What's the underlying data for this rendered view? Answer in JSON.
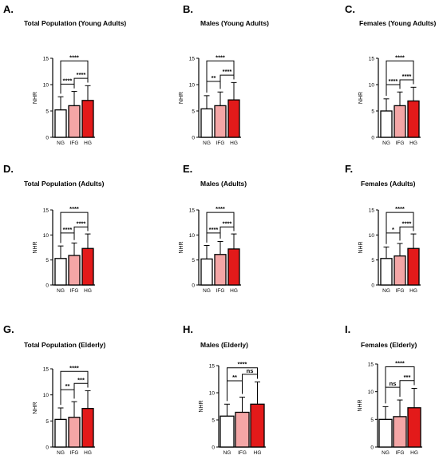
{
  "figure": {
    "panels": [
      {
        "label": "A.",
        "title": "Total Population (Young Adults)"
      },
      {
        "label": "B.",
        "title": "Males (Young Adults)"
      },
      {
        "label": "C.",
        "title": "Females (Young Adults)"
      },
      {
        "label": "D.",
        "title": "Total Population (Adults)"
      },
      {
        "label": "E.",
        "title": "Males (Adults)"
      },
      {
        "label": "F.",
        "title": "Females (Adults)"
      },
      {
        "label": "G.",
        "title": "Total Population (Elderly)"
      },
      {
        "label": "H.",
        "title": "Males (Elderly)"
      },
      {
        "label": "I.",
        "title": "Females (Elderly)"
      }
    ]
  },
  "chart_data": [
    {
      "type": "bar",
      "title": "Total Population (Young Adults)",
      "ylabel": "NHR",
      "ylim": [
        0,
        15
      ],
      "yticks": [
        0,
        5,
        10,
        15
      ],
      "categories": [
        "NG",
        "IFG",
        "HG"
      ],
      "values": [
        5.2,
        6.0,
        7.0
      ],
      "error_upper": [
        7.7,
        8.7,
        9.8
      ],
      "bar_colors": [
        "#ffffff",
        "#f4a6a6",
        "#e31a1a"
      ],
      "comparisons": [
        {
          "from": 0,
          "to": 1,
          "label": "****"
        },
        {
          "from": 1,
          "to": 2,
          "label": "****"
        },
        {
          "from": 0,
          "to": 2,
          "label": "****"
        }
      ]
    },
    {
      "type": "bar",
      "title": "Males (Young Adults)",
      "ylabel": "NHR",
      "ylim": [
        0,
        15
      ],
      "yticks": [
        0,
        5,
        10,
        15
      ],
      "categories": [
        "NG",
        "IFG",
        "HG"
      ],
      "values": [
        5.4,
        6.0,
        7.1
      ],
      "error_upper": [
        7.9,
        8.6,
        10.4
      ],
      "bar_colors": [
        "#ffffff",
        "#f4a6a6",
        "#e31a1a"
      ],
      "comparisons": [
        {
          "from": 0,
          "to": 1,
          "label": "**"
        },
        {
          "from": 1,
          "to": 2,
          "label": "****"
        },
        {
          "from": 0,
          "to": 2,
          "label": "****"
        }
      ]
    },
    {
      "type": "bar",
      "title": "Females (Young Adults)",
      "ylabel": "NHR",
      "ylim": [
        0,
        15
      ],
      "yticks": [
        0,
        5,
        10,
        15
      ],
      "categories": [
        "NG",
        "IFG",
        "HG"
      ],
      "values": [
        5.0,
        6.0,
        6.9
      ],
      "error_upper": [
        7.3,
        8.6,
        9.5
      ],
      "bar_colors": [
        "#ffffff",
        "#f4a6a6",
        "#e31a1a"
      ],
      "comparisons": [
        {
          "from": 0,
          "to": 1,
          "label": "****"
        },
        {
          "from": 1,
          "to": 2,
          "label": "****"
        },
        {
          "from": 0,
          "to": 2,
          "label": "****"
        }
      ]
    },
    {
      "type": "bar",
      "title": "Total Population (Adults)",
      "ylabel": "NHR",
      "ylim": [
        0,
        15
      ],
      "yticks": [
        0,
        5,
        10,
        15
      ],
      "categories": [
        "NG",
        "IFG",
        "HG"
      ],
      "values": [
        5.3,
        5.9,
        7.3
      ],
      "error_upper": [
        7.8,
        8.4,
        10.2
      ],
      "bar_colors": [
        "#ffffff",
        "#f4a6a6",
        "#e31a1a"
      ],
      "comparisons": [
        {
          "from": 0,
          "to": 1,
          "label": "****"
        },
        {
          "from": 1,
          "to": 2,
          "label": "****"
        },
        {
          "from": 0,
          "to": 2,
          "label": "****"
        }
      ]
    },
    {
      "type": "bar",
      "title": "Males (Adults)",
      "ylabel": "NHR",
      "ylim": [
        0,
        15
      ],
      "yticks": [
        0,
        5,
        10,
        15
      ],
      "categories": [
        "NG",
        "IFG",
        "HG"
      ],
      "values": [
        5.2,
        6.1,
        7.2
      ],
      "error_upper": [
        7.9,
        8.7,
        10.2
      ],
      "bar_colors": [
        "#ffffff",
        "#f4a6a6",
        "#e31a1a"
      ],
      "comparisons": [
        {
          "from": 0,
          "to": 1,
          "label": "****"
        },
        {
          "from": 1,
          "to": 2,
          "label": "****"
        },
        {
          "from": 0,
          "to": 2,
          "label": "****"
        }
      ]
    },
    {
      "type": "bar",
      "title": "Females (Adults)",
      "ylabel": "NHR",
      "ylim": [
        0,
        15
      ],
      "yticks": [
        0,
        5,
        10,
        15
      ],
      "categories": [
        "NG",
        "IFG",
        "HG"
      ],
      "values": [
        5.3,
        5.8,
        7.3
      ],
      "error_upper": [
        7.6,
        8.3,
        10.2
      ],
      "bar_colors": [
        "#ffffff",
        "#f4a6a6",
        "#e31a1a"
      ],
      "comparisons": [
        {
          "from": 0,
          "to": 1,
          "label": "*"
        },
        {
          "from": 1,
          "to": 2,
          "label": "****"
        },
        {
          "from": 0,
          "to": 2,
          "label": "****"
        }
      ]
    },
    {
      "type": "bar",
      "title": "Total Population (Elderly)",
      "ylabel": "NHR",
      "ylim": [
        0,
        15
      ],
      "yticks": [
        0,
        5,
        10,
        15
      ],
      "categories": [
        "NG",
        "IFG",
        "HG"
      ],
      "values": [
        5.3,
        5.7,
        7.4
      ],
      "error_upper": [
        7.5,
        8.7,
        10.8
      ],
      "bar_colors": [
        "#ffffff",
        "#f4a6a6",
        "#e31a1a"
      ],
      "comparisons": [
        {
          "from": 0,
          "to": 1,
          "label": "**"
        },
        {
          "from": 1,
          "to": 2,
          "label": "***"
        },
        {
          "from": 0,
          "to": 2,
          "label": "****"
        }
      ]
    },
    {
      "type": "bar",
      "title": "Males (Elderly)",
      "ylabel": "NHR",
      "ylim": [
        0,
        15
      ],
      "yticks": [
        0,
        5,
        10,
        15
      ],
      "categories": [
        "NG",
        "IFG",
        "HG"
      ],
      "values": [
        5.7,
        6.4,
        7.9
      ],
      "error_upper": [
        7.9,
        9.2,
        12.0
      ],
      "bar_colors": [
        "#ffffff",
        "#f4a6a6",
        "#e31a1a"
      ],
      "comparisons": [
        {
          "from": 0,
          "to": 1,
          "label": "**"
        },
        {
          "from": 1,
          "to": 2,
          "label": "ns"
        },
        {
          "from": 0,
          "to": 2,
          "label": "****"
        }
      ]
    },
    {
      "type": "bar",
      "title": "Females (Elderly)",
      "ylabel": "NHR",
      "ylim": [
        0,
        15
      ],
      "yticks": [
        0,
        5,
        10,
        15
      ],
      "categories": [
        "NG",
        "IFG",
        "HG"
      ],
      "values": [
        5.0,
        5.5,
        7.1
      ],
      "error_upper": [
        7.3,
        8.5,
        10.6
      ],
      "bar_colors": [
        "#ffffff",
        "#f4a6a6",
        "#e31a1a"
      ],
      "comparisons": [
        {
          "from": 0,
          "to": 1,
          "label": "ns"
        },
        {
          "from": 1,
          "to": 2,
          "label": "***"
        },
        {
          "from": 0,
          "to": 2,
          "label": "****"
        }
      ]
    }
  ]
}
